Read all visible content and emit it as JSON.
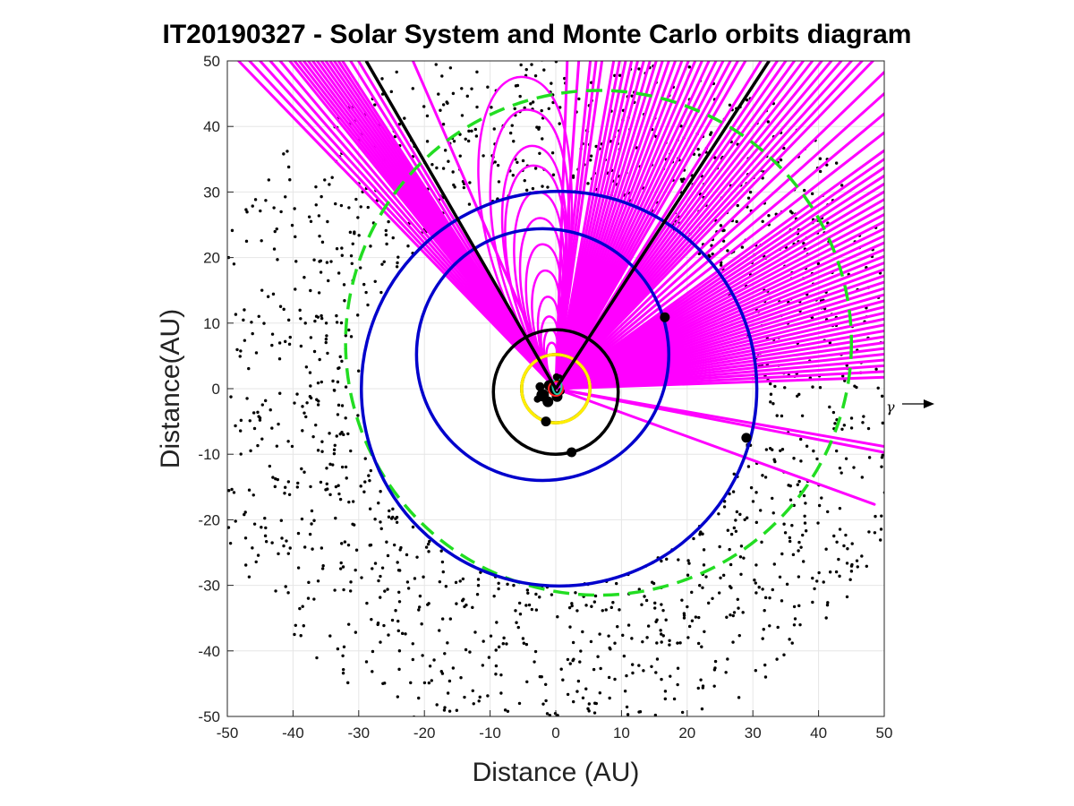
{
  "chart_data": {
    "type": "scatter",
    "title": "IT20190327 - Solar System and Monte Carlo orbits diagram",
    "xlabel": "Distance (AU)",
    "ylabel": "Distance(AU)",
    "xlim": [
      -50,
      50
    ],
    "ylim": [
      -50,
      50
    ],
    "xticks": [
      -50,
      -40,
      -30,
      -20,
      -10,
      0,
      10,
      20,
      30,
      40,
      50
    ],
    "yticks": [
      -50,
      -40,
      -30,
      -20,
      -10,
      0,
      10,
      20,
      30,
      40,
      50
    ],
    "grid": true,
    "annotation": "γ",
    "colors": {
      "monte_carlo": "#ff00ff",
      "neptune_uranus_orbits": "#0000cc",
      "saturn_jupiter_orbits": "#000000",
      "kuiper_edge": "#22dd22",
      "sun_ring": "#ffee00",
      "kuiper_dots": "#000000"
    },
    "planet_orbits": [
      {
        "a": 5.2,
        "color": "#000000"
      },
      {
        "a": 9.5,
        "color": "#000000"
      },
      {
        "a": 19.2,
        "color": "#0000cc"
      },
      {
        "a": 30.1,
        "color": "#0000cc"
      }
    ],
    "planets": [
      {
        "x": -1.5,
        "y": -5.0
      },
      {
        "x": 2.4,
        "y": -9.7
      },
      {
        "x": 16.6,
        "y": 10.9
      },
      {
        "x": 29.0,
        "y": -7.5
      }
    ],
    "reference_orbits": [
      {
        "name": "kuiper-edge",
        "radius": 38.5,
        "style": "dashed"
      },
      {
        "name": "sun-ring",
        "radius": 5.2
      }
    ],
    "monte_carlo_rays_deg": [
      134,
      133,
      132,
      131,
      130,
      129,
      128.5,
      128,
      127.5,
      127,
      126.5,
      126,
      125.5,
      125,
      124.5,
      124,
      123.5,
      123,
      122,
      121,
      113.5,
      88,
      86,
      84,
      83,
      82,
      80,
      79,
      78,
      77,
      76,
      75,
      74,
      73,
      72,
      71,
      70,
      69,
      68,
      67,
      66,
      65,
      64,
      63,
      62,
      61,
      60,
      58,
      57,
      56,
      55,
      54,
      53,
      52,
      51,
      50,
      49,
      48,
      47,
      46,
      44,
      42,
      40,
      38,
      36,
      35,
      34,
      33,
      32,
      31,
      30,
      29,
      28,
      27,
      26,
      25,
      24,
      23,
      22,
      21,
      20,
      19,
      18,
      17,
      16,
      15,
      14,
      13,
      12,
      11,
      10,
      9,
      8,
      7,
      6,
      5,
      4,
      3,
      2,
      -10,
      -11,
      -20
    ],
    "monte_carlo_loops": [
      {
        "height": 47.5,
        "width": 13
      },
      {
        "height": 42.5,
        "width": 11
      },
      {
        "height": 37,
        "width": 9
      },
      {
        "height": 34,
        "width": 8.5
      },
      {
        "height": 30,
        "width": 7
      },
      {
        "height": 26,
        "width": 6
      },
      {
        "height": 22,
        "width": 5
      },
      {
        "height": 18,
        "width": 4
      },
      {
        "height": 14,
        "width": 3
      },
      {
        "height": 11,
        "width": 2.5
      },
      {
        "height": 9,
        "width": 2
      },
      {
        "height": 7,
        "width": 1.6
      }
    ],
    "jupiter_trajectory_deg": [
      120,
      57
    ],
    "kuiper_scatter": {
      "count": 1500,
      "r_min": 30,
      "r_max": 55
    }
  }
}
